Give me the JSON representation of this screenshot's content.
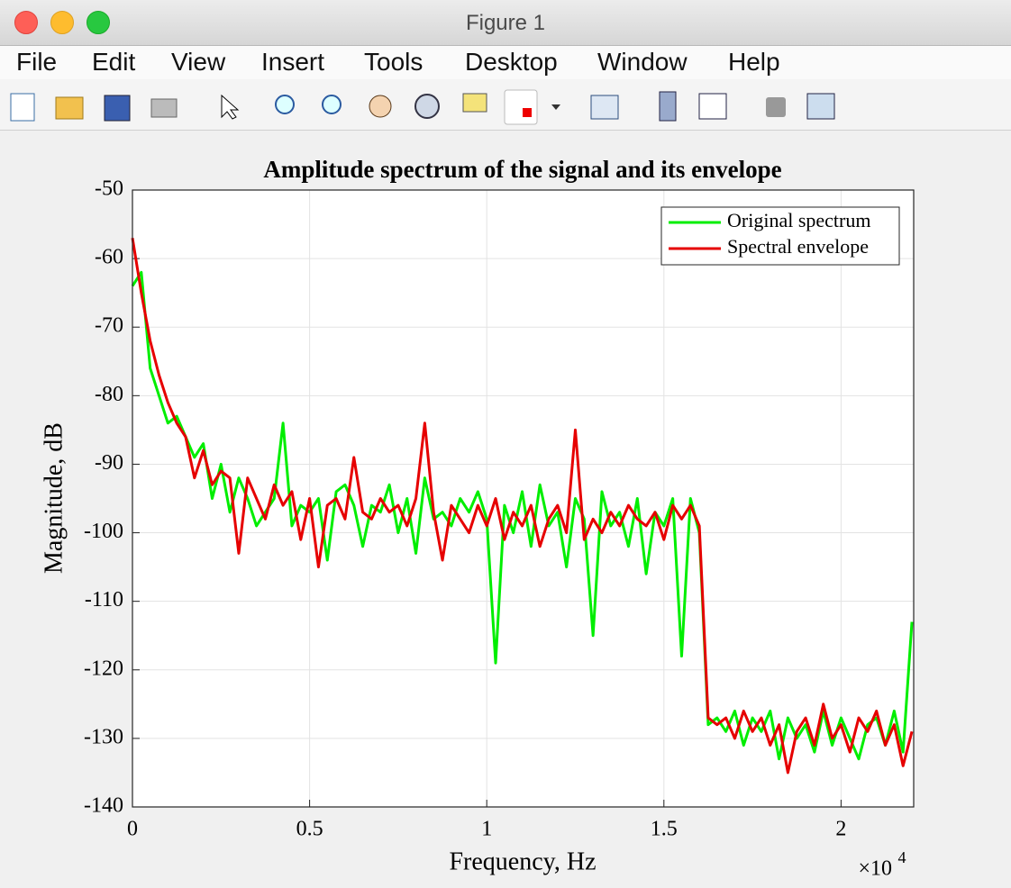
{
  "window": {
    "title": "Figure 1",
    "menu": [
      "File",
      "Edit",
      "View",
      "Insert",
      "Tools",
      "Desktop",
      "Window",
      "Help"
    ]
  },
  "chart_data": {
    "type": "line",
    "title": "Amplitude spectrum of the signal and its envelope",
    "x_label": "Frequency, Hz",
    "y_label": "Magnitude, dB",
    "x_exponent": {
      "base": "×10",
      "power": "4"
    },
    "xlim": [
      0,
      22050
    ],
    "ylim": [
      -140,
      -50
    ],
    "xticks": [
      0,
      {
        "value": 5000,
        "label": "0.5"
      },
      {
        "value": 10000,
        "label": "1"
      },
      {
        "value": 15000,
        "label": "1.5"
      },
      {
        "value": 20000,
        "label": "2"
      }
    ],
    "yticks": [
      -140,
      -130,
      -120,
      -110,
      -100,
      -90,
      -80,
      -70,
      -60,
      -50
    ],
    "grid": true,
    "legend": "upper right",
    "x": [
      0,
      250,
      500,
      750,
      1000,
      1250,
      1500,
      1750,
      2000,
      2250,
      2500,
      2750,
      3000,
      3250,
      3500,
      3750,
      4000,
      4250,
      4500,
      4750,
      5000,
      5250,
      5500,
      5750,
      6000,
      6250,
      6500,
      6750,
      7000,
      7250,
      7500,
      7750,
      8000,
      8250,
      8500,
      8750,
      9000,
      9250,
      9500,
      9750,
      10000,
      10250,
      10500,
      10750,
      11000,
      11250,
      11500,
      11750,
      12000,
      12250,
      12500,
      12750,
      13000,
      13250,
      13500,
      13750,
      14000,
      14250,
      14500,
      14750,
      15000,
      15250,
      15500,
      15750,
      16000,
      16250,
      16500,
      16750,
      17000,
      17250,
      17500,
      17750,
      18000,
      18250,
      18500,
      18750,
      19000,
      19250,
      19500,
      19750,
      20000,
      20250,
      20500,
      20750,
      21000,
      21250,
      21500,
      21750,
      22000
    ],
    "series": [
      {
        "name": "Original spectrum",
        "color": "#00ee00",
        "values": [
          -64,
          -62,
          -76,
          -80,
          -84,
          -83,
          -86,
          -89,
          -87,
          -95,
          -90,
          -97,
          -92,
          -95,
          -99,
          -97,
          -95,
          -84,
          -99,
          -96,
          -97,
          -95,
          -104,
          -94,
          -93,
          -96,
          -102,
          -96,
          -97,
          -93,
          -100,
          -95,
          -103,
          -92,
          -98,
          -97,
          -99,
          -95,
          -97,
          -94,
          -98,
          -119,
          -96,
          -100,
          -94,
          -102,
          -93,
          -99,
          -97,
          -105,
          -95,
          -98,
          -115,
          -94,
          -99,
          -97,
          -102,
          -95,
          -106,
          -97,
          -99,
          -95,
          -118,
          -95,
          -100,
          -128,
          -127,
          -129,
          -126,
          -131,
          -127,
          -129,
          -126,
          -133,
          -127,
          -130,
          -128,
          -132,
          -126,
          -131,
          -127,
          -130,
          -133,
          -128,
          -127,
          -131,
          -126,
          -132,
          -113
        ]
      },
      {
        "name": "Spectral envelope",
        "color": "#e60000",
        "values": [
          -57,
          -65,
          -72,
          -77,
          -81,
          -84,
          -86,
          -92,
          -88,
          -93,
          -91,
          -92,
          -103,
          -92,
          -95,
          -98,
          -93,
          -96,
          -94,
          -101,
          -95,
          -105,
          -96,
          -95,
          -98,
          -89,
          -97,
          -98,
          -95,
          -97,
          -96,
          -99,
          -95,
          -84,
          -97,
          -104,
          -96,
          -98,
          -100,
          -96,
          -99,
          -95,
          -101,
          -97,
          -99,
          -96,
          -102,
          -98,
          -96,
          -100,
          -85,
          -101,
          -98,
          -100,
          -97,
          -99,
          -96,
          -98,
          -99,
          -97,
          -101,
          -96,
          -98,
          -96,
          -99,
          -127,
          -128,
          -127,
          -130,
          -126,
          -129,
          -127,
          -131,
          -128,
          -135,
          -129,
          -127,
          -131,
          -125,
          -130,
          -128,
          -132,
          -127,
          -129,
          -126,
          -131,
          -128,
          -134,
          -129
        ]
      }
    ]
  }
}
